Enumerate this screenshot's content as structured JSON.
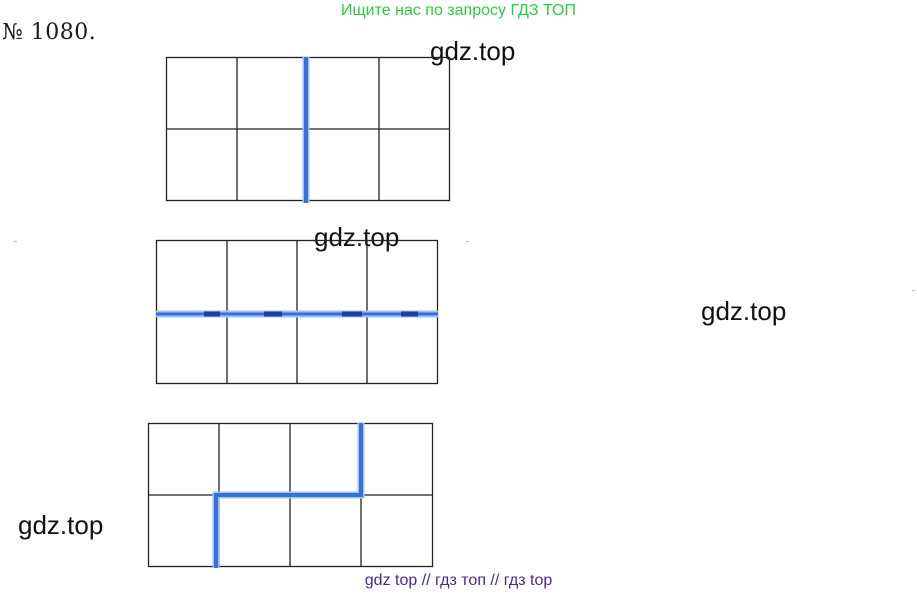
{
  "banner": {
    "text": "Ищите нас по запросу ГДЗ ТОП"
  },
  "task": {
    "number": "№ 1080."
  },
  "watermarks": [
    "gdz.top",
    "gdz.top",
    "gdz.top",
    "gdz.top"
  ],
  "footer": {
    "text": "gdz top  //  гдз топ  //  гдз top"
  },
  "figures": [
    {
      "name": "rectangle-2x4-vertical-cut",
      "rows": 2,
      "cols": 4,
      "cut": "vertical line through the middle"
    },
    {
      "name": "rectangle-2x4-horizontal-cut",
      "rows": 2,
      "cols": 4,
      "cut": "horizontal line through the middle"
    },
    {
      "name": "rectangle-2x4-stepped-cut",
      "rows": 2,
      "cols": 4,
      "cut": "stepped line"
    }
  ],
  "colors": {
    "banner": "#2ecc40",
    "cut_line": "#3a6fd8",
    "grid": "#222222",
    "footer": "#4b2a8a"
  }
}
